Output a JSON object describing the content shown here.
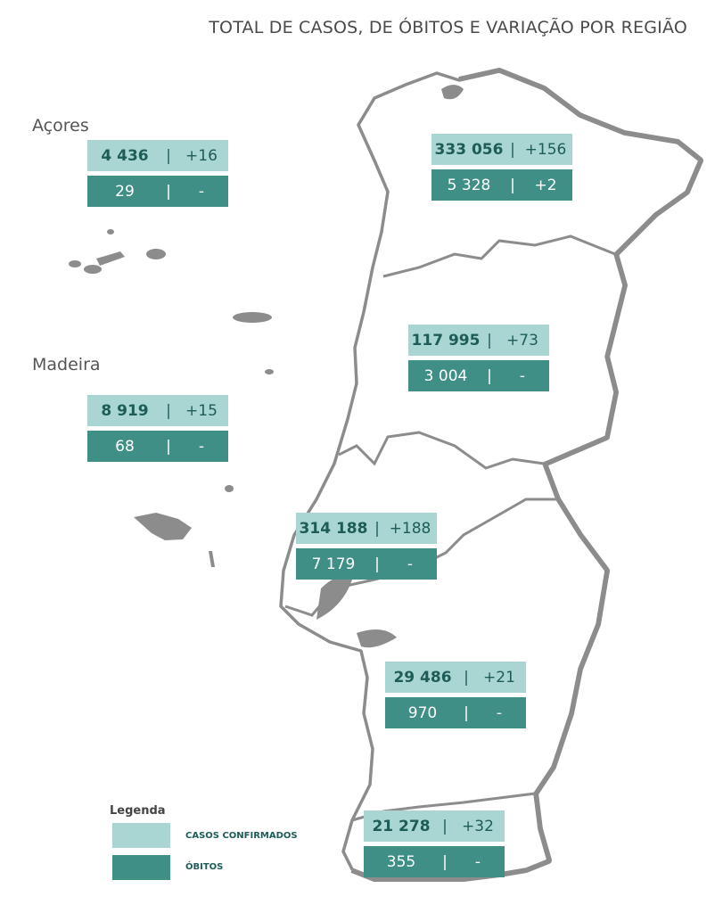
{
  "title": "TOTAL DE CASOS, DE ÓBITOS E VARIAÇÃO POR REGIÃO",
  "truncated_left_char": ")",
  "colors": {
    "cases_bg": "#a9d6d3",
    "deaths_bg": "#3f8f87",
    "map_outline": "#8c8c8c",
    "map_fill": "#ffffff"
  },
  "islands": {
    "acores_label": "Açores",
    "madeira_label": "Madeira"
  },
  "regions": [
    {
      "id": "acores",
      "cases": "4 436",
      "cases_delta": "+16",
      "deaths": "29",
      "deaths_delta": "-"
    },
    {
      "id": "norte",
      "cases": "333 056",
      "cases_delta": "+156",
      "deaths": "5 328",
      "deaths_delta": "+2"
    },
    {
      "id": "madeira",
      "cases": "8 919",
      "cases_delta": "+15",
      "deaths": "68",
      "deaths_delta": "-"
    },
    {
      "id": "centro",
      "cases": "117 995",
      "cases_delta": "+73",
      "deaths": "3 004",
      "deaths_delta": "-"
    },
    {
      "id": "lisboa",
      "cases": "314 188",
      "cases_delta": "+188",
      "deaths": "7 179",
      "deaths_delta": "-"
    },
    {
      "id": "alentejo",
      "cases": "29 486",
      "cases_delta": "+21",
      "deaths": "970",
      "deaths_delta": "-"
    },
    {
      "id": "algarve",
      "cases": "21 278",
      "cases_delta": "+32",
      "deaths": "355",
      "deaths_delta": "-"
    }
  ],
  "separator": "|",
  "legend": {
    "title": "Legenda",
    "cases_label": "CASOS CONFIRMADOS",
    "deaths_label": "ÓBITOS"
  }
}
